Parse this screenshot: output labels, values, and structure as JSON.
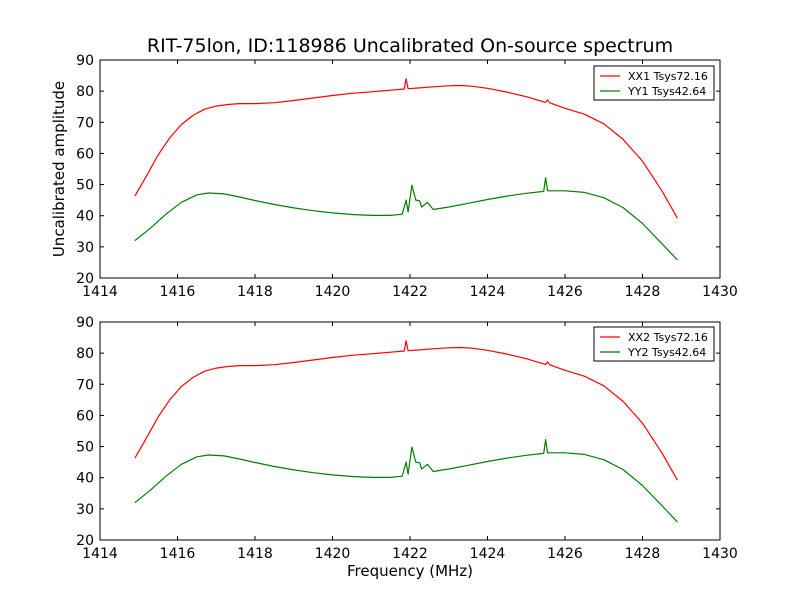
{
  "figure": {
    "title": "RIT-75lon, ID:118986 Uncalibrated On-source spectrum"
  },
  "chart_data": [
    {
      "type": "line",
      "title": "RIT-75lon, ID:118986 Uncalibrated On-source spectrum",
      "xlabel": "",
      "ylabel": "Uncalibrated amplitude",
      "xlim": [
        1414,
        1430
      ],
      "ylim": [
        20,
        90
      ],
      "x_ticks": [
        "1414",
        "1416",
        "1418",
        "1420",
        "1422",
        "1424",
        "1426",
        "1428",
        "1430"
      ],
      "y_ticks": [
        "20",
        "30",
        "40",
        "50",
        "60",
        "70",
        "80",
        "90"
      ],
      "grid": false,
      "legend_position": "top-right",
      "series": [
        {
          "name": "XX1 Tsys72.16",
          "color": "#ff0000",
          "points": [
            [
              1414.9,
              46.3
            ],
            [
              1415.2,
              52.8
            ],
            [
              1415.5,
              59.5
            ],
            [
              1415.8,
              65.0
            ],
            [
              1416.1,
              69.3
            ],
            [
              1416.4,
              72.2
            ],
            [
              1416.7,
              74.2
            ],
            [
              1417.0,
              75.2
            ],
            [
              1417.3,
              75.7
            ],
            [
              1417.6,
              76.0
            ],
            [
              1418.0,
              76.0
            ],
            [
              1418.5,
              76.3
            ],
            [
              1419.0,
              77.0
            ],
            [
              1419.5,
              77.8
            ],
            [
              1420.0,
              78.6
            ],
            [
              1420.5,
              79.3
            ],
            [
              1421.0,
              79.8
            ],
            [
              1421.5,
              80.3
            ],
            [
              1421.85,
              80.7
            ],
            [
              1421.9,
              84.0
            ],
            [
              1421.95,
              80.8
            ],
            [
              1422.2,
              81.0
            ],
            [
              1422.6,
              81.4
            ],
            [
              1423.0,
              81.7
            ],
            [
              1423.3,
              81.8
            ],
            [
              1423.6,
              81.6
            ],
            [
              1424.0,
              80.9
            ],
            [
              1424.5,
              79.7
            ],
            [
              1425.0,
              78.2
            ],
            [
              1425.5,
              76.4
            ],
            [
              1425.55,
              77.2
            ],
            [
              1425.6,
              76.3
            ],
            [
              1426.0,
              74.5
            ],
            [
              1426.5,
              72.6
            ],
            [
              1427.0,
              69.5
            ],
            [
              1427.5,
              64.5
            ],
            [
              1428.0,
              57.5
            ],
            [
              1428.5,
              48.0
            ],
            [
              1428.9,
              39.2
            ]
          ]
        },
        {
          "name": "YY1 Tsys42.64",
          "color": "#008000",
          "points": [
            [
              1414.9,
              32.0
            ],
            [
              1415.3,
              36.0
            ],
            [
              1415.7,
              40.5
            ],
            [
              1416.1,
              44.3
            ],
            [
              1416.5,
              46.7
            ],
            [
              1416.8,
              47.3
            ],
            [
              1417.2,
              47.0
            ],
            [
              1417.6,
              46.0
            ],
            [
              1418.0,
              44.9
            ],
            [
              1418.5,
              43.6
            ],
            [
              1419.0,
              42.5
            ],
            [
              1419.5,
              41.6
            ],
            [
              1420.0,
              40.9
            ],
            [
              1420.5,
              40.4
            ],
            [
              1421.0,
              40.1
            ],
            [
              1421.5,
              40.1
            ],
            [
              1421.8,
              40.5
            ],
            [
              1421.9,
              45.0
            ],
            [
              1421.95,
              41.2
            ],
            [
              1422.05,
              49.8
            ],
            [
              1422.15,
              45.0
            ],
            [
              1422.25,
              44.8
            ],
            [
              1422.3,
              42.8
            ],
            [
              1422.45,
              44.3
            ],
            [
              1422.6,
              42.0
            ],
            [
              1423.0,
              42.8
            ],
            [
              1423.5,
              44.0
            ],
            [
              1424.0,
              45.2
            ],
            [
              1424.5,
              46.3
            ],
            [
              1425.0,
              47.2
            ],
            [
              1425.45,
              47.8
            ],
            [
              1425.5,
              52.2
            ],
            [
              1425.55,
              48.0
            ],
            [
              1426.0,
              48.0
            ],
            [
              1426.5,
              47.5
            ],
            [
              1427.0,
              45.8
            ],
            [
              1427.5,
              42.6
            ],
            [
              1428.0,
              37.5
            ],
            [
              1428.5,
              31.0
            ],
            [
              1428.9,
              25.8
            ]
          ]
        }
      ]
    },
    {
      "type": "line",
      "title": "",
      "xlabel": "Frequency (MHz)",
      "ylabel": "",
      "xlim": [
        1414,
        1430
      ],
      "ylim": [
        20,
        90
      ],
      "x_ticks": [
        "1414",
        "1416",
        "1418",
        "1420",
        "1422",
        "1424",
        "1426",
        "1428",
        "1430"
      ],
      "y_ticks": [
        "20",
        "30",
        "40",
        "50",
        "60",
        "70",
        "80",
        "90"
      ],
      "grid": false,
      "legend_position": "top-right",
      "series": [
        {
          "name": "XX2 Tsys72.16",
          "color": "#ff0000",
          "points": [
            [
              1414.9,
              46.3
            ],
            [
              1415.2,
              52.8
            ],
            [
              1415.5,
              59.5
            ],
            [
              1415.8,
              65.0
            ],
            [
              1416.1,
              69.3
            ],
            [
              1416.4,
              72.2
            ],
            [
              1416.7,
              74.2
            ],
            [
              1417.0,
              75.2
            ],
            [
              1417.3,
              75.7
            ],
            [
              1417.6,
              76.0
            ],
            [
              1418.0,
              76.0
            ],
            [
              1418.5,
              76.3
            ],
            [
              1419.0,
              77.0
            ],
            [
              1419.5,
              77.8
            ],
            [
              1420.0,
              78.6
            ],
            [
              1420.5,
              79.3
            ],
            [
              1421.0,
              79.8
            ],
            [
              1421.5,
              80.3
            ],
            [
              1421.85,
              80.7
            ],
            [
              1421.9,
              84.0
            ],
            [
              1421.95,
              80.8
            ],
            [
              1422.2,
              81.0
            ],
            [
              1422.6,
              81.4
            ],
            [
              1423.0,
              81.7
            ],
            [
              1423.3,
              81.8
            ],
            [
              1423.6,
              81.6
            ],
            [
              1424.0,
              80.9
            ],
            [
              1424.5,
              79.7
            ],
            [
              1425.0,
              78.2
            ],
            [
              1425.5,
              76.4
            ],
            [
              1425.55,
              77.2
            ],
            [
              1425.6,
              76.3
            ],
            [
              1426.0,
              74.5
            ],
            [
              1426.5,
              72.6
            ],
            [
              1427.0,
              69.5
            ],
            [
              1427.5,
              64.5
            ],
            [
              1428.0,
              57.5
            ],
            [
              1428.5,
              48.0
            ],
            [
              1428.9,
              39.2
            ]
          ]
        },
        {
          "name": "YY2 Tsys42.64",
          "color": "#008000",
          "points": [
            [
              1414.9,
              32.0
            ],
            [
              1415.3,
              36.0
            ],
            [
              1415.7,
              40.5
            ],
            [
              1416.1,
              44.3
            ],
            [
              1416.5,
              46.7
            ],
            [
              1416.8,
              47.3
            ],
            [
              1417.2,
              47.0
            ],
            [
              1417.6,
              46.0
            ],
            [
              1418.0,
              44.9
            ],
            [
              1418.5,
              43.6
            ],
            [
              1419.0,
              42.5
            ],
            [
              1419.5,
              41.6
            ],
            [
              1420.0,
              40.9
            ],
            [
              1420.5,
              40.4
            ],
            [
              1421.0,
              40.1
            ],
            [
              1421.5,
              40.1
            ],
            [
              1421.8,
              40.5
            ],
            [
              1421.9,
              45.0
            ],
            [
              1421.95,
              41.2
            ],
            [
              1422.05,
              49.8
            ],
            [
              1422.15,
              45.0
            ],
            [
              1422.25,
              44.8
            ],
            [
              1422.3,
              42.8
            ],
            [
              1422.45,
              44.3
            ],
            [
              1422.6,
              42.0
            ],
            [
              1423.0,
              42.8
            ],
            [
              1423.5,
              44.0
            ],
            [
              1424.0,
              45.2
            ],
            [
              1424.5,
              46.3
            ],
            [
              1425.0,
              47.2
            ],
            [
              1425.45,
              47.8
            ],
            [
              1425.5,
              52.2
            ],
            [
              1425.55,
              48.0
            ],
            [
              1426.0,
              48.0
            ],
            [
              1426.5,
              47.5
            ],
            [
              1427.0,
              45.8
            ],
            [
              1427.5,
              42.6
            ],
            [
              1428.0,
              37.5
            ],
            [
              1428.5,
              31.0
            ],
            [
              1428.9,
              25.8
            ]
          ]
        }
      ]
    }
  ]
}
